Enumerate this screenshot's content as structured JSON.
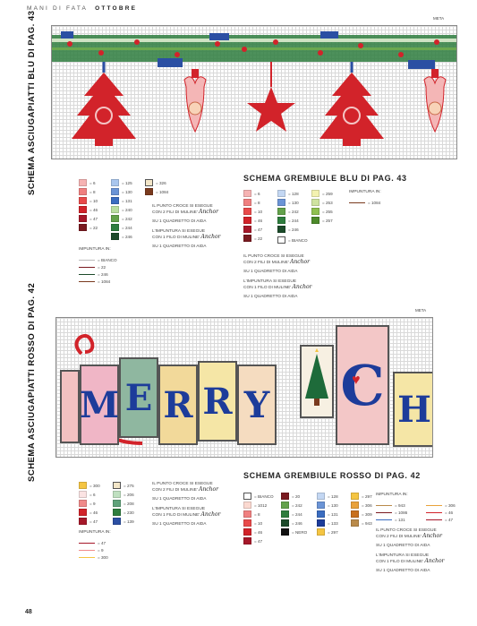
{
  "header": {
    "left": "MANI DI FATA",
    "right": "OTTOBRE"
  },
  "page_number": "48",
  "section_top": {
    "side_title": "SCHEMA ASCIUGAPIATTI BLU DI PAG. 43",
    "meta": "META",
    "legend": {
      "col1": [
        "= 6",
        "= 8",
        "= 10",
        "= 46",
        "= 47",
        "= 22"
      ],
      "col2": [
        "= 125",
        "= 130",
        "= 131",
        "= 240",
        "= 242",
        "= 244",
        "= 246"
      ],
      "col3": [
        "= 326",
        "= 1084"
      ],
      "notes": [
        "IL PUNTO CROCE SI ESEGUE",
        "CON 2 FILI DI MULINE'",
        "SU 1 QUADRETTO DI AIDA",
        "L'IMPUNTURA SI ESEGUE",
        "CON 1 FILO DI MULINE'",
        "SU 1 QUADRETTO DI AIDA"
      ],
      "anchor": "Anchor",
      "impuntura_label": "IMPUNTURA IN:",
      "impuntura": [
        "= BIANCO",
        "= 22",
        "= 246",
        "= 1084"
      ]
    }
  },
  "apron_blue": {
    "title": "SCHEMA GREMBIULE BLU DI PAG. 43",
    "col1": [
      "= 6",
      "= 8",
      "= 10",
      "= 46",
      "= 47",
      "= 22"
    ],
    "col2": [
      "= 128",
      "= 130",
      "= 242",
      "= 244",
      "= 246"
    ],
    "col3": [
      "= 259",
      "= 253",
      "= 255",
      "= 257"
    ],
    "bianco": "= BIANCO",
    "impuntura_label": "IMPUNTURA IN:",
    "impuntura": [
      "= 1084"
    ],
    "notes": [
      "IL PUNTO CROCE SI ESEGUE",
      "CON 2 FILI DI MULINE'",
      "SU 1 QUADRETTO DI AIDA",
      "L'IMPUNTURA SI ESEGUE",
      "CON 1 FILO DI MULINE'",
      "SU 1 QUADRETTO DI AIDA"
    ],
    "anchor": "Anchor"
  },
  "section_bottom": {
    "side_title": "SCHEMA ASCIUGAPIATTI ROSSO DI PAG. 42",
    "meta": "META",
    "letters": [
      "M",
      "E",
      "R",
      "R",
      "Y",
      "C",
      "H"
    ],
    "legend": {
      "col1": [
        "= 300",
        "= 6",
        "= 9",
        "= 46",
        "= 47"
      ],
      "col2": [
        "= 275",
        "= 206",
        "= 208",
        "= 230",
        "= 139"
      ],
      "impuntura_label": "IMPUNTURA IN:",
      "impuntura": [
        "= 47",
        "= 9",
        "= 300"
      ],
      "notes": [
        "IL PUNTO CROCE SI ESEGUE",
        "CON 2 FILI DI MULINE'",
        "SU 1 QUADRETTO DI AIDA",
        "L'IMPUNTURA SI ESEGUE",
        "CON 1 FILO DI MULINE'",
        "SU 1 QUADRETTO DI AIDA"
      ],
      "anchor": "Anchor"
    }
  },
  "apron_red": {
    "title": "SCHEMA GREMBIULE ROSSO DI PAG. 42",
    "col1": [
      "= BIANCO",
      "= 1012",
      "= 8",
      "= 10",
      "= 46",
      "= 47"
    ],
    "col2": [
      "= 20",
      "= 242",
      "= 244",
      "= 246",
      "= NERO"
    ],
    "col3": [
      "= 128",
      "= 130",
      "= 131",
      "= 133",
      "= 297"
    ],
    "col4": [
      "= 297",
      "= 306",
      "= 309",
      "= 943"
    ],
    "impuntura_label": "IMPUNTURA IN:",
    "impuntura": [
      "= 943",
      "= 1086",
      "= 131",
      "= 306",
      "= 46",
      "= 47"
    ],
    "notes": [
      "IL PUNTO CROCE SI ESEGUE",
      "CON 2 FILI DI MULINE'",
      "SU 1 QUADRETTO DI AIDA",
      "L'IMPUNTURA SI ESEGUE",
      "CON 1 FILO DI MULINE'",
      "SU 1 QUADRETTO DI AIDA"
    ],
    "anchor": "Anchor"
  },
  "colors": {
    "red": "#d2232a",
    "pink": "#f4a6a6",
    "blue": "#2b4fa3",
    "green": "#1e6b3a",
    "gold": "#f5c542"
  }
}
